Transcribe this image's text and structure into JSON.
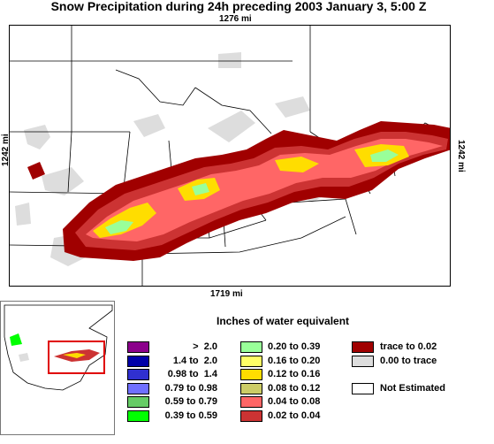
{
  "title": "Snow Precipitation during 24h preceding 2003 January 3, 5:00 Z",
  "scale": {
    "top": "1276 mi",
    "bottom": "1719 mi",
    "left": "1242 mi",
    "right": "1242 mi"
  },
  "legend": {
    "title": "Inches of water equivalent",
    "column1": [
      {
        "label": ">  2.0",
        "color": "#8b008b"
      },
      {
        "label": "1.4 to  2.0",
        "color": "#0000a8"
      },
      {
        "label": "0.98 to  1.4",
        "color": "#3030d0"
      },
      {
        "label": "0.79 to 0.98",
        "color": "#7070ff"
      },
      {
        "label": "0.59 to 0.79",
        "color": "#66cc66"
      },
      {
        "label": "0.39 to 0.59",
        "color": "#00ff00"
      }
    ],
    "column2": [
      {
        "label": "0.20 to 0.39",
        "color": "#99ff99"
      },
      {
        "label": "0.16 to 0.20",
        "color": "#ffff66"
      },
      {
        "label": "0.12 to 0.16",
        "color": "#ffdd00"
      },
      {
        "label": "0.08 to 0.12",
        "color": "#cccc66"
      },
      {
        "label": "0.04 to 0.08",
        "color": "#ff6666"
      },
      {
        "label": "0.02 to 0.04",
        "color": "#cc3333"
      }
    ],
    "column3": [
      {
        "label": "trace to 0.02",
        "color": "#a00000"
      },
      {
        "label": "0.00 to trace",
        "color": "#dddddd"
      },
      {
        "label": "",
        "color": ""
      },
      {
        "label": "Not Estimated",
        "color": "#ffffff"
      }
    ]
  }
}
